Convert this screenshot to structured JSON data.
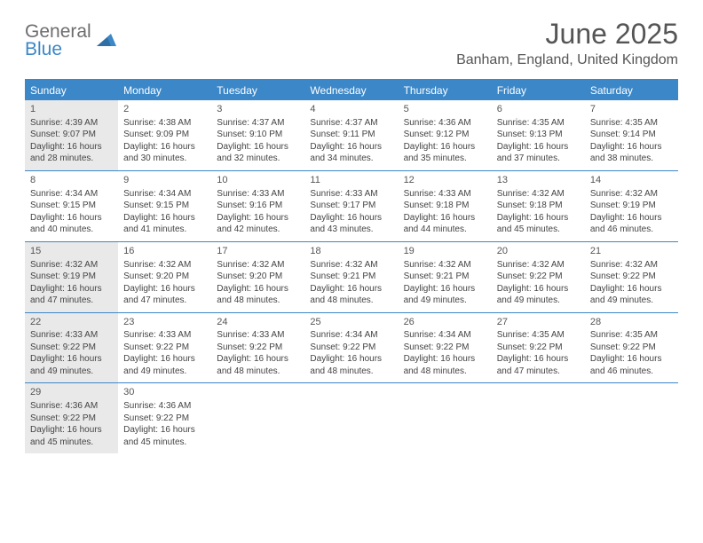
{
  "logo": {
    "line1": "General",
    "line2": "Blue"
  },
  "title": "June 2025",
  "location": "Banham, England, United Kingdom",
  "colors": {
    "header_bar": "#3b87c8",
    "shaded_cell": "#e9e9e9",
    "text": "#444444",
    "title_text": "#555555"
  },
  "weekdays": [
    "Sunday",
    "Monday",
    "Tuesday",
    "Wednesday",
    "Thursday",
    "Friday",
    "Saturday"
  ],
  "weeks": [
    [
      {
        "n": "1",
        "shaded": true,
        "sunrise": "4:39 AM",
        "sunset": "9:07 PM",
        "daylight": "16 hours and 28 minutes."
      },
      {
        "n": "2",
        "shaded": false,
        "sunrise": "4:38 AM",
        "sunset": "9:09 PM",
        "daylight": "16 hours and 30 minutes."
      },
      {
        "n": "3",
        "shaded": false,
        "sunrise": "4:37 AM",
        "sunset": "9:10 PM",
        "daylight": "16 hours and 32 minutes."
      },
      {
        "n": "4",
        "shaded": false,
        "sunrise": "4:37 AM",
        "sunset": "9:11 PM",
        "daylight": "16 hours and 34 minutes."
      },
      {
        "n": "5",
        "shaded": false,
        "sunrise": "4:36 AM",
        "sunset": "9:12 PM",
        "daylight": "16 hours and 35 minutes."
      },
      {
        "n": "6",
        "shaded": false,
        "sunrise": "4:35 AM",
        "sunset": "9:13 PM",
        "daylight": "16 hours and 37 minutes."
      },
      {
        "n": "7",
        "shaded": false,
        "sunrise": "4:35 AM",
        "sunset": "9:14 PM",
        "daylight": "16 hours and 38 minutes."
      }
    ],
    [
      {
        "n": "8",
        "shaded": false,
        "sunrise": "4:34 AM",
        "sunset": "9:15 PM",
        "daylight": "16 hours and 40 minutes."
      },
      {
        "n": "9",
        "shaded": false,
        "sunrise": "4:34 AM",
        "sunset": "9:15 PM",
        "daylight": "16 hours and 41 minutes."
      },
      {
        "n": "10",
        "shaded": false,
        "sunrise": "4:33 AM",
        "sunset": "9:16 PM",
        "daylight": "16 hours and 42 minutes."
      },
      {
        "n": "11",
        "shaded": false,
        "sunrise": "4:33 AM",
        "sunset": "9:17 PM",
        "daylight": "16 hours and 43 minutes."
      },
      {
        "n": "12",
        "shaded": false,
        "sunrise": "4:33 AM",
        "sunset": "9:18 PM",
        "daylight": "16 hours and 44 minutes."
      },
      {
        "n": "13",
        "shaded": false,
        "sunrise": "4:32 AM",
        "sunset": "9:18 PM",
        "daylight": "16 hours and 45 minutes."
      },
      {
        "n": "14",
        "shaded": false,
        "sunrise": "4:32 AM",
        "sunset": "9:19 PM",
        "daylight": "16 hours and 46 minutes."
      }
    ],
    [
      {
        "n": "15",
        "shaded": true,
        "sunrise": "4:32 AM",
        "sunset": "9:19 PM",
        "daylight": "16 hours and 47 minutes."
      },
      {
        "n": "16",
        "shaded": false,
        "sunrise": "4:32 AM",
        "sunset": "9:20 PM",
        "daylight": "16 hours and 47 minutes."
      },
      {
        "n": "17",
        "shaded": false,
        "sunrise": "4:32 AM",
        "sunset": "9:20 PM",
        "daylight": "16 hours and 48 minutes."
      },
      {
        "n": "18",
        "shaded": false,
        "sunrise": "4:32 AM",
        "sunset": "9:21 PM",
        "daylight": "16 hours and 48 minutes."
      },
      {
        "n": "19",
        "shaded": false,
        "sunrise": "4:32 AM",
        "sunset": "9:21 PM",
        "daylight": "16 hours and 49 minutes."
      },
      {
        "n": "20",
        "shaded": false,
        "sunrise": "4:32 AM",
        "sunset": "9:22 PM",
        "daylight": "16 hours and 49 minutes."
      },
      {
        "n": "21",
        "shaded": false,
        "sunrise": "4:32 AM",
        "sunset": "9:22 PM",
        "daylight": "16 hours and 49 minutes."
      }
    ],
    [
      {
        "n": "22",
        "shaded": true,
        "sunrise": "4:33 AM",
        "sunset": "9:22 PM",
        "daylight": "16 hours and 49 minutes."
      },
      {
        "n": "23",
        "shaded": false,
        "sunrise": "4:33 AM",
        "sunset": "9:22 PM",
        "daylight": "16 hours and 49 minutes."
      },
      {
        "n": "24",
        "shaded": false,
        "sunrise": "4:33 AM",
        "sunset": "9:22 PM",
        "daylight": "16 hours and 48 minutes."
      },
      {
        "n": "25",
        "shaded": false,
        "sunrise": "4:34 AM",
        "sunset": "9:22 PM",
        "daylight": "16 hours and 48 minutes."
      },
      {
        "n": "26",
        "shaded": false,
        "sunrise": "4:34 AM",
        "sunset": "9:22 PM",
        "daylight": "16 hours and 48 minutes."
      },
      {
        "n": "27",
        "shaded": false,
        "sunrise": "4:35 AM",
        "sunset": "9:22 PM",
        "daylight": "16 hours and 47 minutes."
      },
      {
        "n": "28",
        "shaded": false,
        "sunrise": "4:35 AM",
        "sunset": "9:22 PM",
        "daylight": "16 hours and 46 minutes."
      }
    ],
    [
      {
        "n": "29",
        "shaded": true,
        "sunrise": "4:36 AM",
        "sunset": "9:22 PM",
        "daylight": "16 hours and 45 minutes."
      },
      {
        "n": "30",
        "shaded": false,
        "sunrise": "4:36 AM",
        "sunset": "9:22 PM",
        "daylight": "16 hours and 45 minutes."
      },
      null,
      null,
      null,
      null,
      null
    ]
  ],
  "labels": {
    "sunrise_prefix": "Sunrise: ",
    "sunset_prefix": "Sunset: ",
    "daylight_prefix": "Daylight: "
  }
}
